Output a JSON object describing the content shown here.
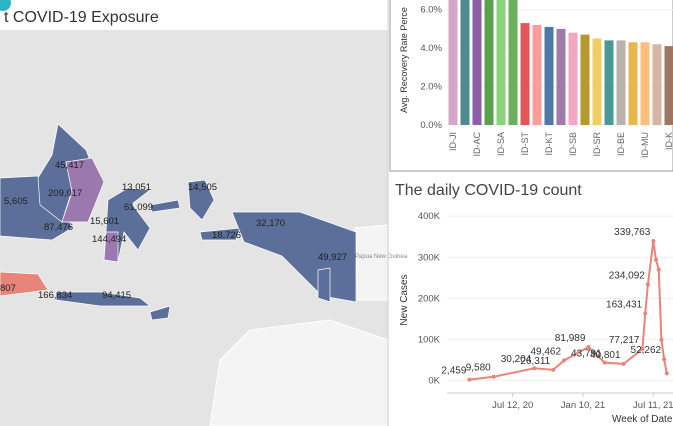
{
  "map": {
    "title": "t COVID-19 Exposure",
    "labels": [
      "45,417",
      "209,017",
      "5,605",
      "87,476",
      "13,051",
      "14,505",
      "15,601",
      "61,099",
      "144,494",
      "18,726",
      "32,170",
      "49,927",
      "807",
      "166,834",
      "94,415"
    ],
    "region_label": "Papua New Guinea"
  },
  "chart_data": [
    {
      "type": "bar",
      "ylabel": "Avg. Recovery Rate Perce",
      "categories": [
        "ID-JI",
        null,
        "ID-AC",
        null,
        "ID-SA",
        null,
        "ID-ST",
        null,
        "ID-KT",
        null,
        "ID-SB",
        null,
        "ID-SR",
        null,
        "ID-BE",
        null,
        "ID-MU",
        null,
        "ID-K"
      ],
      "values": [
        7.0,
        7.0,
        7.0,
        7.0,
        7.0,
        7.0,
        5.3,
        5.2,
        5.1,
        5.0,
        4.8,
        4.7,
        4.5,
        4.4,
        4.4,
        4.3,
        4.3,
        4.2,
        4.1
      ],
      "colors": [
        "#d4a6c8",
        "#4e8a8f",
        "#8e5fa8",
        "#59a14f",
        "#8cd17d",
        "#6bb05c",
        "#e15759",
        "#ff9d9a",
        "#4e79a7",
        "#a07aa8",
        "#f1a6c1",
        "#b6992d",
        "#f1ce63",
        "#499894",
        "#bab0ac",
        "#e8b64c",
        "#ffbe7d",
        "#d7b5a6",
        "#9d7660"
      ],
      "ylim": [
        0,
        6.5
      ],
      "yticks": [
        {
          "value": 0,
          "label": "0.0%"
        },
        {
          "value": 2,
          "label": "2.0%"
        },
        {
          "value": 4,
          "label": "4.0%"
        },
        {
          "value": 6,
          "label": "6.0%"
        }
      ]
    },
    {
      "type": "line",
      "title": "The daily COVID-19 count",
      "ylabel": "New Cases",
      "xlabel": "Week of Date",
      "color": "#e8857a",
      "x": [
        "2020-03-22",
        "2020-05-24",
        "2020-09-06",
        "2020-10-25",
        "2020-11-22",
        "2021-01-24",
        "2021-03-07",
        "2021-04-25",
        "2021-06-13",
        "2021-06-20",
        "2021-06-27",
        "2021-07-11",
        "2021-07-18",
        "2021-07-25",
        "2021-08-01",
        "2021-08-08",
        "2021-08-15"
      ],
      "values": [
        2459,
        9580,
        30204,
        26311,
        49462,
        81989,
        43791,
        40801,
        77217,
        163431,
        234092,
        339763,
        294000,
        270000,
        99300,
        52262,
        17720
      ],
      "value_labels": [
        "2,459",
        "9,580",
        "30,204",
        "26,311",
        "49,462",
        "81,989",
        "43,791",
        "40,801",
        "77,217",
        "163,431",
        "234,092",
        "339,763",
        null,
        null,
        null,
        "52,262",
        null
      ],
      "xlim": [
        "2020-01-24",
        "2021-08-31"
      ],
      "xticks": [
        {
          "value": "2020-07-12",
          "label": "Jul 12, 20"
        },
        {
          "value": "2021-01-10",
          "label": "Jan 10, 21"
        },
        {
          "value": "2021-07-11",
          "label": "Jul 11, 21"
        }
      ],
      "ylim": [
        -30000,
        420000
      ],
      "yticks": [
        {
          "value": 0,
          "label": "0K"
        },
        {
          "value": 100000,
          "label": "100K"
        },
        {
          "value": 200000,
          "label": "200K"
        },
        {
          "value": 300000,
          "label": "300K"
        },
        {
          "value": 400000,
          "label": "400K"
        }
      ]
    }
  ]
}
